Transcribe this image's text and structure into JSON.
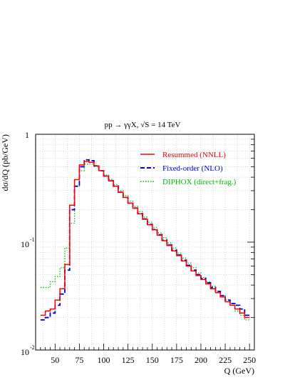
{
  "chart_data": {
    "type": "line",
    "title": "pp → γγX, √S = 14 TeV",
    "xlabel": "Q (GeV)",
    "ylabel": "dσ/dQ (pb/GeV)",
    "xlim": [
      30,
      255
    ],
    "ylim": [
      0.01,
      1
    ],
    "yscale": "log",
    "grid": true,
    "legend_position": "top-right",
    "x_ticks": [
      "50",
      "75",
      "100",
      "125",
      "150",
      "175",
      "200",
      "225",
      "250"
    ],
    "y_ticks": [
      {
        "mantissa": "1",
        "exponent": ""
      },
      {
        "mantissa": "10",
        "exponent": "-1"
      },
      {
        "mantissa": "10",
        "exponent": "-2"
      }
    ],
    "bin_edges": [
      35,
      40,
      45,
      50,
      55,
      60,
      65,
      70,
      75,
      80,
      85,
      90,
      95,
      100,
      105,
      110,
      115,
      120,
      125,
      130,
      135,
      140,
      145,
      150,
      155,
      160,
      165,
      170,
      175,
      180,
      185,
      190,
      195,
      200,
      205,
      210,
      215,
      220,
      225,
      230,
      235,
      240,
      245,
      250
    ],
    "series": [
      {
        "name": "Resummed (NNLL)",
        "color": "#ff0000",
        "dash": "solid",
        "values": [
          0.021,
          0.023,
          0.024,
          0.029,
          0.037,
          0.062,
          0.22,
          0.38,
          0.52,
          0.56,
          0.55,
          0.51,
          0.46,
          0.41,
          0.37,
          0.33,
          0.29,
          0.26,
          0.23,
          0.206,
          0.183,
          0.163,
          0.145,
          0.13,
          0.116,
          0.103,
          0.093,
          0.083,
          0.075,
          0.067,
          0.06,
          0.054,
          0.049,
          0.045,
          0.041,
          0.037,
          0.034,
          0.031,
          0.028,
          0.026,
          0.024,
          0.022,
          0.02
        ]
      },
      {
        "name": "Fixed-order (NLO)",
        "color": "#0000cc",
        "dash": "dashed",
        "values": [
          0.019,
          0.02,
          0.022,
          0.026,
          0.033,
          0.055,
          0.2,
          0.33,
          0.5,
          0.58,
          0.57,
          0.51,
          0.46,
          0.41,
          0.37,
          0.33,
          0.29,
          0.26,
          0.23,
          0.207,
          0.184,
          0.164,
          0.146,
          0.131,
          0.117,
          0.104,
          0.094,
          0.084,
          0.076,
          0.068,
          0.061,
          0.055,
          0.05,
          0.046,
          0.042,
          0.038,
          0.035,
          0.032,
          0.029,
          0.027,
          0.026,
          0.024,
          0.021
        ]
      },
      {
        "name": "DIPHOX (direct+frag.)",
        "color": "#00bb00",
        "dash": "dotted",
        "values": [
          0.038,
          0.038,
          0.043,
          0.048,
          0.058,
          0.088,
          0.15,
          0.33,
          0.46,
          0.53,
          0.53,
          0.5,
          0.46,
          0.42,
          0.38,
          0.34,
          0.3,
          0.27,
          0.24,
          0.215,
          0.192,
          0.171,
          0.153,
          0.137,
          0.122,
          0.11,
          0.098,
          0.088,
          0.079,
          0.071,
          0.064,
          0.058,
          0.052,
          0.047,
          0.043,
          0.039,
          0.035,
          0.032,
          0.029,
          0.026,
          0.023,
          0.021,
          0.019
        ]
      }
    ]
  }
}
